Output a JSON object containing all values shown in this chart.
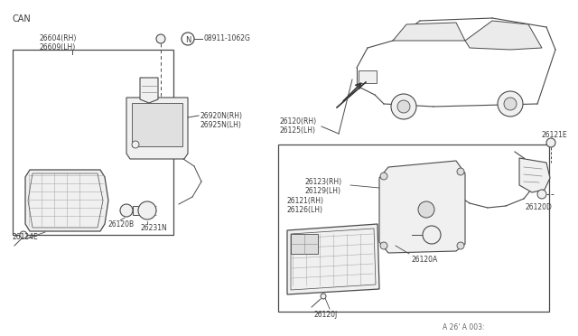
{
  "bg_color": "#ffffff",
  "can_label": "CAN",
  "bolt_label": "08911-1062G",
  "left_parts": {
    "top_label": "26604(RH)\n26609(LH)",
    "housing_label": "26920N(RH)\n26925N(LH)",
    "socket_label": "26231N",
    "b_label": "26120B",
    "e_label": "26124E"
  },
  "right_parts": {
    "car_label": "26120(RH)\n26125(LH)",
    "e_label": "26121E",
    "rh_label": "26123(RH)\n26129(LH)",
    "rh2_label": "26121(RH)\n26126(LH)",
    "d_label": "26120D",
    "a_label": "26120A",
    "j_label": "26120J"
  },
  "fig_ref": "A 26' A 003:"
}
